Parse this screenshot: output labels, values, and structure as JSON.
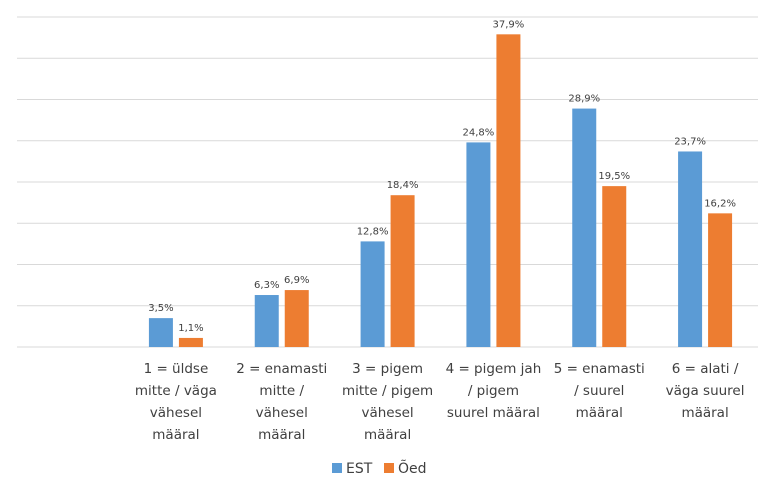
{
  "chart_data": {
    "type": "bar",
    "categories": [
      [
        "1 = üldse",
        "mitte / väga",
        "vähesel",
        "määral"
      ],
      [
        "2 = enamasti",
        "mitte /",
        "vähesel",
        "määral"
      ],
      [
        "3 = pigem",
        "mitte / pigem",
        "vähesel",
        "määral"
      ],
      [
        "4 = pigem jah",
        "/ pigem",
        "suurel määral"
      ],
      [
        "5 = enamasti",
        "/ suurel",
        "määral"
      ],
      [
        "6 = alati /",
        "väga suurel",
        "määral"
      ]
    ],
    "series": [
      {
        "name": "EST",
        "color": "#5B9BD5",
        "values": [
          3.5,
          6.3,
          12.8,
          24.8,
          28.9,
          23.7
        ],
        "labels": [
          "3,5%",
          "6,3%",
          "12,8%",
          "24,8%",
          "28,9%",
          "23,7%"
        ]
      },
      {
        "name": "Õed",
        "color": "#ED7D31",
        "values": [
          1.1,
          6.9,
          18.4,
          37.9,
          19.5,
          16.2
        ],
        "labels": [
          "1,1%",
          "6,9%",
          "18,4%",
          "37,9%",
          "19,5%",
          "16,2%"
        ]
      }
    ],
    "ylim": [
      0,
      40
    ],
    "grid": true,
    "legend": "bottom",
    "gridline_color": "#D9D9D9"
  }
}
